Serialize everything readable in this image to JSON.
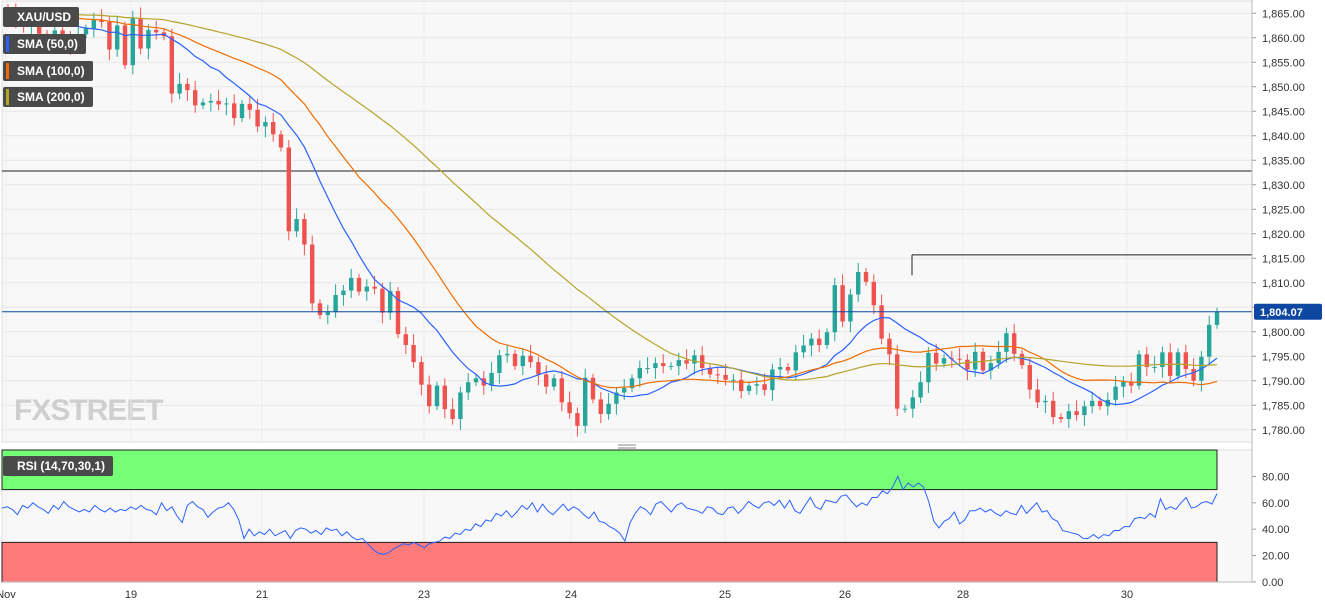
{
  "chart_data": [
    {
      "type": "candlestick",
      "symbol": "XAU/USD",
      "indicators": [
        {
          "name": "SMA (50,0)",
          "color": "#2962ff"
        },
        {
          "name": "SMA (100,0)",
          "color": "#ef6c00"
        },
        {
          "name": "SMA (200,0)",
          "color": "#b5a42a"
        }
      ],
      "y_ticks": [
        "1,865.00",
        "1,860.00",
        "1,855.00",
        "1,850.00",
        "1,845.00",
        "1,840.00",
        "1,835.00",
        "1,830.00",
        "1,825.00",
        "1,820.00",
        "1,815.00",
        "1,810.00",
        "1,805.00",
        "1,800.00",
        "1,795.00",
        "1,790.00",
        "1,785.00",
        "1,780.00"
      ],
      "ylim": [
        1777.5,
        1867.5
      ],
      "x_ticks": [
        "Nov",
        "19",
        "21",
        "23",
        "24",
        "25",
        "26",
        "28",
        "30"
      ],
      "last_price": "1,804.07",
      "last_price_value": 1804.07,
      "horizontal_levels": [
        1832.8,
        1815.7
      ],
      "colors": {
        "up": "#26a69a",
        "down": "#ef5350",
        "last_price_bg": "#0d47a1"
      },
      "watermark": "FXSTREET",
      "close": [
        1865.5,
        1863.8,
        1862.2,
        1862.9,
        1860.8,
        1859.9,
        1861.5,
        1860.2,
        1858.7,
        1860.7,
        1861.9,
        1863.6,
        1863.2,
        1857.6,
        1862.5,
        1854.4,
        1864.0,
        1857.8,
        1861.6,
        1861.1,
        1860.3,
        1848.6,
        1850.6,
        1849.3,
        1846.2,
        1846.8,
        1847.1,
        1846.4,
        1846.6,
        1843.6,
        1846.5,
        1845.3,
        1841.9,
        1842.8,
        1840.3,
        1837.6,
        1820.5,
        1823.0,
        1817.8,
        1805.8,
        1803.4,
        1804.0,
        1807.5,
        1808.4,
        1811.0,
        1808.2,
        1809.2,
        1808.8,
        1803.9,
        1808.3,
        1799.5,
        1797.3,
        1793.8,
        1789.2,
        1784.8,
        1789.0,
        1784.2,
        1782.2,
        1787.6,
        1789.7,
        1790.5,
        1789.0,
        1791.6,
        1795.2,
        1795.5,
        1793.0,
        1795.1,
        1793.8,
        1791.3,
        1788.8,
        1790.5,
        1785.6,
        1783.4,
        1780.8,
        1790.6,
        1786.2,
        1783.2,
        1785.3,
        1787.6,
        1788.5,
        1790.5,
        1792.6,
        1792.6,
        1793.6,
        1793.0,
        1793.0,
        1794.2,
        1793.5,
        1795.2,
        1792.6,
        1791.3,
        1791.2,
        1790.2,
        1790.2,
        1787.9,
        1789.0,
        1789.3,
        1788.1,
        1792.3,
        1792.8,
        1792.1,
        1795.8,
        1797.2,
        1798.6,
        1797.3,
        1799.9,
        1809.5,
        1802.1,
        1807.6,
        1812.2,
        1810.2,
        1805.4,
        1798.6,
        1795.4,
        1784.3,
        1784.3,
        1786.6,
        1789.7,
        1795.7,
        1793.5,
        1794.6,
        1794.5,
        1794.3,
        1792.3,
        1795.9,
        1792.1,
        1793.6,
        1795.9,
        1799.7,
        1795.5,
        1793.2,
        1788.2,
        1785.6,
        1785.9,
        1782.6,
        1782.2,
        1783.8,
        1783.0,
        1784.8,
        1785.9,
        1784.8,
        1786.1,
        1788.8,
        1789.8,
        1789.0,
        1795.4,
        1792.8,
        1792.8,
        1795.8,
        1791.0,
        1795.8,
        1792.4,
        1790.0,
        1794.9,
        1801.4,
        1804.1
      ],
      "close_step_bars_per_px": "8",
      "rsi": {
        "label": "RSI (14,70,30,1)",
        "y_ticks": [
          "80.00",
          "60.00",
          "40.00",
          "20.00",
          "0.00"
        ],
        "ylim": [
          0,
          100
        ],
        "overbought": 70,
        "oversold": 30,
        "colors": {
          "line": "#2962ff",
          "overbought_fill": "#76ff76",
          "oversold_fill": "#ff7b7b"
        },
        "values": [
          56,
          57,
          55,
          51,
          58,
          56,
          60,
          57,
          55,
          52,
          58,
          55,
          61,
          57,
          55,
          53,
          55,
          53,
          58,
          55,
          53,
          56,
          53,
          55,
          54,
          57,
          55,
          58,
          55,
          54,
          51,
          60,
          54,
          57,
          50,
          45,
          58,
          61,
          57,
          55,
          49,
          53,
          56,
          57,
          60,
          55,
          47,
          33,
          40,
          35,
          38,
          36,
          40,
          35,
          37,
          39,
          33,
          39,
          41,
          40,
          37,
          39,
          36,
          41,
          39,
          40,
          35,
          38,
          34,
          32,
          33,
          29,
          25,
          22,
          21,
          22,
          25,
          27,
          29,
          28,
          30,
          28,
          26,
          29,
          30,
          31,
          34,
          33,
          37,
          36,
          40,
          39,
          44,
          42,
          47,
          46,
          52,
          50,
          54,
          49,
          53,
          58,
          55,
          60,
          53,
          59,
          54,
          51,
          55,
          59,
          54,
          57,
          55,
          51,
          48,
          53,
          46,
          45,
          42,
          40,
          37,
          31,
          45,
          52,
          57,
          55,
          51,
          59,
          61,
          57,
          53,
          58,
          60,
          56,
          55,
          54,
          52,
          57,
          56,
          52,
          51,
          56,
          57,
          52,
          56,
          61,
          58,
          56,
          60,
          61,
          58,
          62,
          56,
          62,
          54,
          52,
          58,
          64,
          57,
          55,
          62,
          61,
          60,
          65,
          66,
          61,
          57,
          60,
          58,
          64,
          64,
          69,
          67,
          72,
          80,
          70,
          75,
          72,
          75,
          72,
          61,
          46,
          41,
          46,
          48,
          53,
          44,
          47,
          54,
          54,
          56,
          53,
          55,
          52,
          50,
          54,
          52,
          51,
          58,
          52,
          56,
          60,
          53,
          54,
          48,
          46,
          39,
          38,
          37,
          36,
          33,
          33,
          36,
          33,
          36,
          35,
          39,
          39,
          42,
          42,
          48,
          49,
          48,
          52,
          49,
          63,
          55,
          57,
          55,
          60,
          64,
          56,
          57,
          60,
          61,
          59,
          67
        ]
      }
    }
  ]
}
